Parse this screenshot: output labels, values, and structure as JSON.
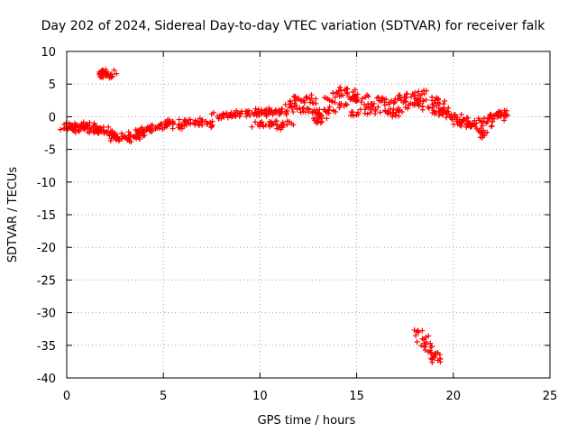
{
  "chart_data": {
    "type": "scatter",
    "title": "Day 202 of 2024, Sidereal Day-to-day VTEC variation (SDTVAR) for receiver falk",
    "xlabel": "GPS time / hours",
    "ylabel": "SDTVAR / TECUs",
    "xlim": [
      0,
      25
    ],
    "ylim": [
      -40,
      10
    ],
    "xticks": [
      0,
      5,
      10,
      15,
      20,
      25
    ],
    "xtick_labels": [
      "0",
      "5",
      "10",
      "15",
      "20",
      "25"
    ],
    "yticks": [
      10,
      5,
      0,
      -5,
      -10,
      -15,
      -20,
      -25,
      -30,
      -35,
      -40
    ],
    "ytick_labels": [
      "10",
      "5",
      "0",
      "-5",
      "-10",
      "-15",
      "-20",
      "-25",
      "-30",
      "-35",
      "-40"
    ],
    "grid": true,
    "marker": "+",
    "colors": {
      "series": "#ff0000",
      "grid": "#a0a0a0",
      "axis": "#000000"
    },
    "series": [
      {
        "name": "SDTVAR",
        "x": [
          0.0,
          0.1,
          0.2,
          0.3,
          0.5,
          0.7,
          0.9,
          1.1,
          1.3,
          1.5,
          1.7,
          1.9,
          2.1,
          2.3,
          1.7,
          1.85,
          2.0,
          2.15,
          2.25,
          2.5,
          2.7,
          2.9,
          3.1,
          3.3,
          3.5,
          3.7,
          3.9,
          4.1,
          4.3,
          4.6,
          4.9,
          5.2,
          5.5,
          5.8,
          6.1,
          6.4,
          6.7,
          7.0,
          7.3,
          7.8,
          8.1,
          8.4,
          8.7,
          9.0,
          9.3,
          9.6,
          9.9,
          10.2,
          10.5,
          10.8,
          11.1,
          11.4,
          9.9,
          10.3,
          10.7,
          11.1,
          11.4,
          11.6,
          11.8,
          12.0,
          12.2,
          12.4,
          12.6,
          12.8,
          13.0,
          13.2,
          13.4,
          13.6,
          13.8,
          14.0,
          14.2,
          14.4,
          14.6,
          14.8,
          14.95,
          15.3,
          15.5,
          15.7,
          15.9,
          16.3,
          16.5,
          16.7,
          16.9,
          17.1,
          17.3,
          17.5,
          17.7,
          17.9,
          18.1,
          18.3,
          18.5,
          18.7,
          18.9,
          19.1,
          19.3,
          19.5,
          19.7,
          19.9,
          20.1,
          20.3,
          20.5,
          20.7,
          20.9,
          21.1,
          21.3,
          21.5,
          21.7,
          21.9,
          22.1,
          22.3,
          22.5,
          22.7,
          18.2,
          18.4,
          18.6,
          18.8,
          19.0,
          19.2,
          13.0,
          15.0
        ],
        "y": [
          -1.5,
          -1.8,
          -1.2,
          -2.0,
          -1.6,
          -1.4,
          -1.9,
          -1.3,
          -1.7,
          -2.0,
          -1.8,
          -2.1,
          -2.3,
          -2.6,
          6.5,
          6.7,
          6.4,
          6.6,
          6.5,
          -3.2,
          -3.4,
          -3.0,
          -3.3,
          -2.8,
          -3.1,
          -2.6,
          -2.4,
          -2.1,
          -1.8,
          -1.6,
          -1.2,
          -1.4,
          -1.0,
          -1.3,
          -0.9,
          -1.1,
          -0.8,
          -0.9,
          -1.1,
          0.1,
          0.2,
          0.3,
          0.2,
          0.4,
          0.5,
          0.6,
          0.7,
          0.6,
          0.8,
          0.7,
          0.8,
          0.9,
          -1.2,
          -1.3,
          -1.1,
          -1.4,
          -1.2,
          2.0,
          1.5,
          2.8,
          1.2,
          3.0,
          2.2,
          1.0,
          0.5,
          -0.2,
          0.8,
          2.5,
          1.0,
          3.5,
          2.0,
          4.0,
          3.0,
          3.8,
          2.5,
          2.8,
          1.5,
          0.6,
          2.0,
          2.5,
          0.8,
          2.2,
          0.5,
          1.0,
          2.5,
          3.0,
          1.8,
          3.5,
          2.0,
          2.8,
          3.5,
          1.5,
          2.5,
          0.6,
          2.0,
          1.2,
          0.8,
          -0.2,
          0.0,
          -0.8,
          -0.5,
          -1.2,
          -1.5,
          -0.6,
          -2.2,
          -2.8,
          -1.0,
          -0.3,
          0.2,
          0.0,
          0.4,
          0.5,
          -33.0,
          -34.0,
          -34.8,
          -35.8,
          -36.5,
          -37.3,
          -0.8,
          0.3
        ]
      }
    ]
  }
}
